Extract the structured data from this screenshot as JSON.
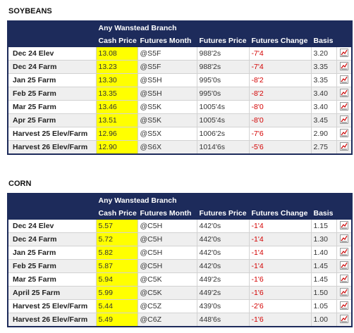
{
  "sections": [
    {
      "title": "SOYBEANS",
      "table": {
        "group_header": "Any Wanstead Branch",
        "headers": [
          "Cash Price",
          "Futures Month",
          "Futures Price",
          "Futures Change",
          "Basis"
        ],
        "rows": [
          [
            "Dec 24 Elev",
            "13.08",
            "@S5F",
            "988'2s",
            "-7'4",
            "3.20"
          ],
          [
            "Dec 24 Farm",
            "13.23",
            "@S5F",
            "988'2s",
            "-7'4",
            "3.35"
          ],
          [
            "Jan 25 Farm",
            "13.30",
            "@S5H",
            "995'0s",
            "-8'2",
            "3.35"
          ],
          [
            "Feb 25 Farm",
            "13.35",
            "@S5H",
            "995'0s",
            "-8'2",
            "3.40"
          ],
          [
            "Mar 25 Farm",
            "13.46",
            "@S5K",
            "1005'4s",
            "-8'0",
            "3.40"
          ],
          [
            "Apr 25 Farm",
            "13.51",
            "@S5K",
            "1005'4s",
            "-8'0",
            "3.45"
          ],
          [
            "Harvest 25 Elev/Farm",
            "12.96",
            "@S5X",
            "1006'2s",
            "-7'6",
            "2.90"
          ],
          [
            "Harvest 26 Elev/Farm",
            "12.90",
            "@S6X",
            "1014'6s",
            "-5'6",
            "2.75"
          ]
        ]
      }
    },
    {
      "title": "CORN",
      "table": {
        "group_header": "Any Wanstead Branch",
        "headers": [
          "Cash Price",
          "Futures Month",
          "Futures Price",
          "Futures Change",
          "Basis"
        ],
        "rows": [
          [
            "Dec 24 Elev",
            "5.57",
            "@C5H",
            "442'0s",
            "-1'4",
            "1.15"
          ],
          [
            "Dec 24 Farm",
            "5.72",
            "@C5H",
            "442'0s",
            "-1'4",
            "1.30"
          ],
          [
            "Jan 25 Farm",
            "5.82",
            "@C5H",
            "442'0s",
            "-1'4",
            "1.40"
          ],
          [
            "Feb 25 Farm",
            "5.87",
            "@C5H",
            "442'0s",
            "-1'4",
            "1.45"
          ],
          [
            "Mar 25 Farm",
            "5.94",
            "@C5K",
            "449'2s",
            "-1'6",
            "1.45"
          ],
          [
            "April 25 Farm",
            "5.99",
            "@C5K",
            "449'2s",
            "-1'6",
            "1.50"
          ],
          [
            "Harvest 25 Elev/Farm",
            "5.44",
            "@C5Z",
            "439'0s",
            "-2'6",
            "1.05"
          ],
          [
            "Harvest 26 Elev/Farm",
            "5.49",
            "@C6Z",
            "448'6s",
            "-1'6",
            "1.00"
          ]
        ]
      }
    }
  ]
}
